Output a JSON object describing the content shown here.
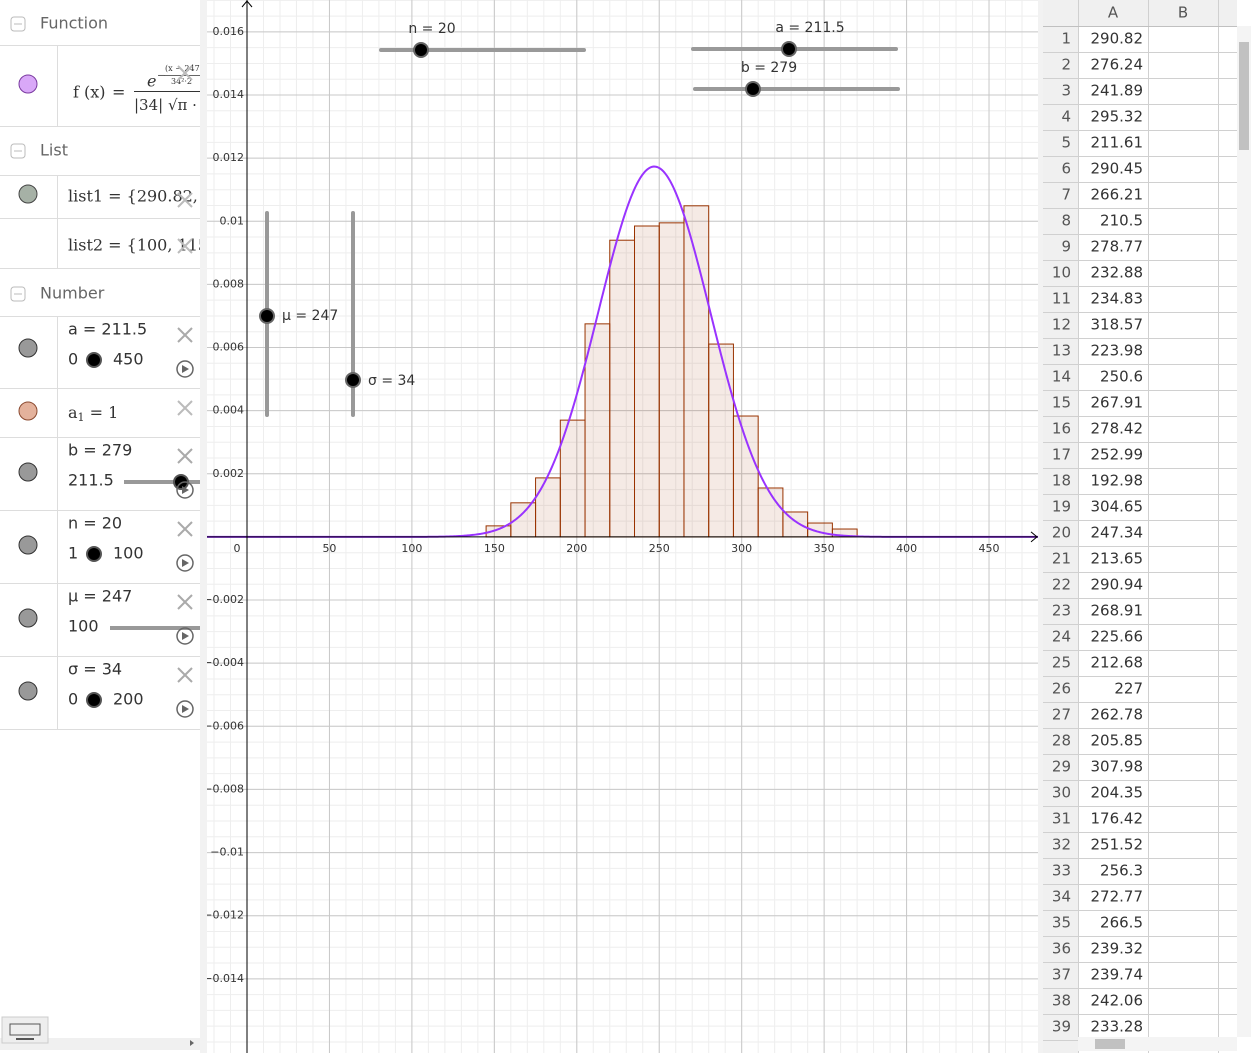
{
  "algebra": {
    "function_header": "Function",
    "function": {
      "lhs": "f (x)",
      "eq": "=",
      "base": "e",
      "exp_sign": "−",
      "exp_num": "(x − 247)²",
      "exp_den": "34²·2",
      "den_abs": "|34|",
      "den_sqrt": "√π ·"
    },
    "list_header": "List",
    "list1": "list1 = {290.82, 2",
    "list2": "list2 = {100, 115,",
    "number_header": "Number",
    "numbers": [
      {
        "label": "a = 211.5",
        "min": 0,
        "max": 450
      },
      {
        "label": "b = 279",
        "min": 211.5
      },
      {
        "label": "n = 20",
        "min": 1,
        "max": 100
      },
      {
        "label": "μ = 247",
        "min": 100
      },
      {
        "label": "σ = 34",
        "min": 0,
        "max": 200
      }
    ],
    "a1": {
      "name": "a",
      "sub": "1",
      "rest": " = 1"
    }
  },
  "graphics_sliders": {
    "n": "n = 20",
    "a": "a = 211.5",
    "b": "b = 279",
    "mu": "μ = 247",
    "sigma": "σ = 34"
  },
  "chart_data": {
    "type": "histogram",
    "bins": [
      145,
      160,
      175,
      190,
      205,
      220,
      235,
      250,
      265,
      280,
      295,
      310,
      325,
      340,
      355,
      370
    ],
    "values": [
      0.00035,
      0.00108,
      0.00187,
      0.0037,
      0.00675,
      0.0094,
      0.00985,
      0.00995,
      0.01049,
      0.00611,
      0.00383,
      0.00155,
      0.00079,
      0.00044,
      0.00025
    ],
    "color": "#993300",
    "curve": {
      "type": "normal",
      "mu": 247,
      "sigma": 34,
      "color": "#9933ff"
    },
    "xlim": [
      -24.26,
      479.7
    ],
    "ylim": [
      -0.01635,
      0.01701
    ],
    "xticks": [
      0,
      50,
      100,
      150,
      200,
      250,
      300,
      350,
      400,
      450
    ],
    "yticks": [
      0.016,
      0.014,
      0.012,
      0.01,
      0.008,
      0.006,
      0.004,
      0.002,
      {
        "value": -0.002,
        "label": "−0.002"
      },
      {
        "value": -0.004,
        "label": "−0.004"
      },
      {
        "value": -0.006,
        "label": "−0.006"
      },
      {
        "value": -0.008,
        "label": "−0.008"
      },
      {
        "value": -0.01,
        "label": "−0.01"
      },
      {
        "value": -0.012,
        "label": "−0.012"
      },
      {
        "value": -0.014,
        "label": "−0.014"
      }
    ],
    "grid": true
  },
  "spreadsheet": {
    "columns": [
      "A",
      "B"
    ],
    "rows": [
      {
        "row": 1,
        "A": 290.82
      },
      {
        "row": 2,
        "A": 276.24
      },
      {
        "row": 3,
        "A": 241.89
      },
      {
        "row": 4,
        "A": 295.32
      },
      {
        "row": 5,
        "A": 211.61
      },
      {
        "row": 6,
        "A": 290.45
      },
      {
        "row": 7,
        "A": 266.21
      },
      {
        "row": 8,
        "A": 210.5
      },
      {
        "row": 9,
        "A": 278.77
      },
      {
        "row": 10,
        "A": 232.88
      },
      {
        "row": 11,
        "A": 234.83
      },
      {
        "row": 12,
        "A": 318.57
      },
      {
        "row": 13,
        "A": 223.98
      },
      {
        "row": 14,
        "A": 250.6
      },
      {
        "row": 15,
        "A": 267.91
      },
      {
        "row": 16,
        "A": 278.42
      },
      {
        "row": 17,
        "A": 252.99
      },
      {
        "row": 18,
        "A": 192.98
      },
      {
        "row": 19,
        "A": 304.65
      },
      {
        "row": 20,
        "A": 247.34
      },
      {
        "row": 21,
        "A": 213.65
      },
      {
        "row": 22,
        "A": 290.94
      },
      {
        "row": 23,
        "A": 268.91
      },
      {
        "row": 24,
        "A": 225.66
      },
      {
        "row": 25,
        "A": 212.68
      },
      {
        "row": 26,
        "A": 227
      },
      {
        "row": 27,
        "A": 262.78
      },
      {
        "row": 28,
        "A": 205.85
      },
      {
        "row": 29,
        "A": 307.98
      },
      {
        "row": 30,
        "A": 204.35
      },
      {
        "row": 31,
        "A": 176.42
      },
      {
        "row": 32,
        "A": 251.52
      },
      {
        "row": 33,
        "A": 256.3
      },
      {
        "row": 34,
        "A": 272.77
      },
      {
        "row": 35,
        "A": 266.5
      },
      {
        "row": 36,
        "A": 239.32
      },
      {
        "row": 37,
        "A": 239.74
      },
      {
        "row": 38,
        "A": 242.06
      },
      {
        "row": 39,
        "A": 233.28
      }
    ]
  }
}
